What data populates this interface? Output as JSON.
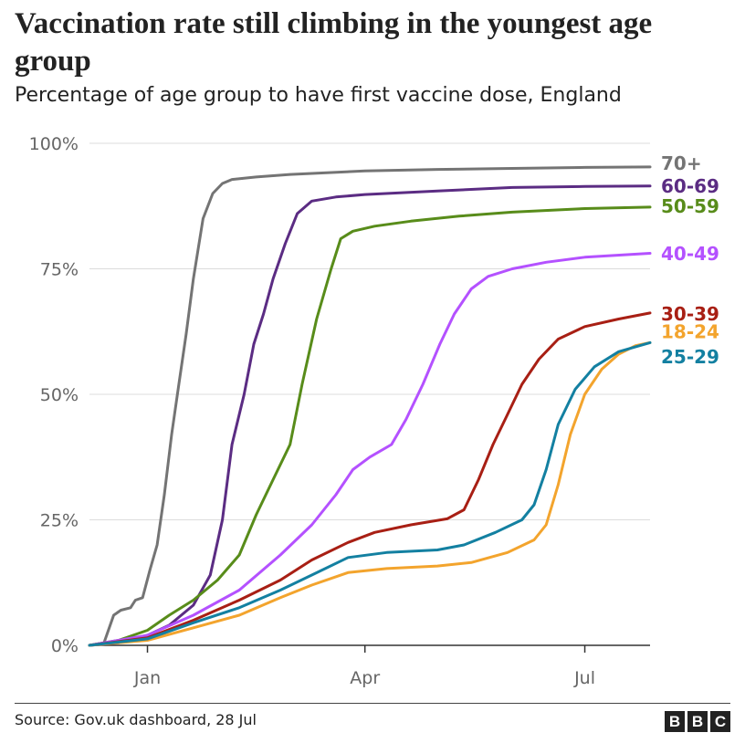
{
  "chart_data": {
    "type": "line",
    "title": "Vaccination rate still climbing in the youngest age group",
    "subtitle": "Percentage of age group to have first vaccine dose, England",
    "y_ticks": [
      "0%",
      "25%",
      "50%",
      "75%",
      "100%"
    ],
    "y_tick_values": [
      0,
      25,
      50,
      75,
      100
    ],
    "x_ticks": [
      "Jan",
      "Apr",
      "Jul"
    ],
    "x_tick_dates": [
      "2021-01-01",
      "2021-04-01",
      "2021-07-01"
    ],
    "x_range": [
      "2020-12-08",
      "2021-07-28"
    ],
    "ylim": [
      0,
      100
    ],
    "grid": true,
    "legend_placement": "right-end-of-lines",
    "series": [
      {
        "name": "70+",
        "color": "#747474",
        "label_value": 96,
        "points": [
          [
            "2020-12-08",
            0
          ],
          [
            "2020-12-14",
            0.5
          ],
          [
            "2020-12-18",
            6
          ],
          [
            "2020-12-21",
            7
          ],
          [
            "2020-12-25",
            7.5
          ],
          [
            "2020-12-27",
            9
          ],
          [
            "2020-12-30",
            9.5
          ],
          [
            "2021-01-02",
            15
          ],
          [
            "2021-01-05",
            20
          ],
          [
            "2021-01-08",
            30
          ],
          [
            "2021-01-11",
            42
          ],
          [
            "2021-01-14",
            52
          ],
          [
            "2021-01-17",
            62
          ],
          [
            "2021-01-20",
            73
          ],
          [
            "2021-01-24",
            85
          ],
          [
            "2021-01-28",
            90
          ],
          [
            "2021-02-01",
            92
          ],
          [
            "2021-02-05",
            92.8
          ],
          [
            "2021-02-15",
            93.3
          ],
          [
            "2021-03-01",
            93.8
          ],
          [
            "2021-04-01",
            94.5
          ],
          [
            "2021-05-01",
            94.8
          ],
          [
            "2021-06-01",
            95
          ],
          [
            "2021-07-01",
            95.2
          ],
          [
            "2021-07-28",
            95.3
          ]
        ]
      },
      {
        "name": "60-69",
        "color": "#5b2c83",
        "label_value": 91.5,
        "points": [
          [
            "2020-12-08",
            0
          ],
          [
            "2020-12-20",
            0.5
          ],
          [
            "2021-01-01",
            2
          ],
          [
            "2021-01-10",
            4
          ],
          [
            "2021-01-20",
            8
          ],
          [
            "2021-01-27",
            14
          ],
          [
            "2021-02-01",
            25
          ],
          [
            "2021-02-05",
            40
          ],
          [
            "2021-02-10",
            50
          ],
          [
            "2021-02-14",
            60
          ],
          [
            "2021-02-18",
            66
          ],
          [
            "2021-02-22",
            73
          ],
          [
            "2021-02-27",
            80
          ],
          [
            "2021-03-04",
            86
          ],
          [
            "2021-03-10",
            88.5
          ],
          [
            "2021-03-20",
            89.3
          ],
          [
            "2021-04-01",
            89.8
          ],
          [
            "2021-05-01",
            90.5
          ],
          [
            "2021-06-01",
            91.2
          ],
          [
            "2021-07-01",
            91.4
          ],
          [
            "2021-07-28",
            91.5
          ]
        ]
      },
      {
        "name": "50-59",
        "color": "#588c1a",
        "label_value": 87.5,
        "points": [
          [
            "2020-12-08",
            0
          ],
          [
            "2020-12-20",
            1
          ],
          [
            "2021-01-01",
            3
          ],
          [
            "2021-01-10",
            6
          ],
          [
            "2021-01-20",
            9
          ],
          [
            "2021-01-30",
            13
          ],
          [
            "2021-02-08",
            18
          ],
          [
            "2021-02-15",
            26
          ],
          [
            "2021-02-22",
            33
          ],
          [
            "2021-03-01",
            40
          ],
          [
            "2021-03-06",
            52
          ],
          [
            "2021-03-12",
            65
          ],
          [
            "2021-03-18",
            75
          ],
          [
            "2021-03-22",
            81
          ],
          [
            "2021-03-27",
            82.5
          ],
          [
            "2021-04-05",
            83.5
          ],
          [
            "2021-04-20",
            84.5
          ],
          [
            "2021-05-10",
            85.5
          ],
          [
            "2021-06-01",
            86.3
          ],
          [
            "2021-07-01",
            87
          ],
          [
            "2021-07-28",
            87.3
          ]
        ]
      },
      {
        "name": "40-49",
        "color": "#b451ff",
        "label_value": 78,
        "points": [
          [
            "2020-12-08",
            0
          ],
          [
            "2021-01-01",
            2
          ],
          [
            "2021-01-20",
            6
          ],
          [
            "2021-02-08",
            11
          ],
          [
            "2021-02-25",
            18
          ],
          [
            "2021-03-10",
            24
          ],
          [
            "2021-03-20",
            30
          ],
          [
            "2021-03-27",
            35
          ],
          [
            "2021-04-03",
            37.5
          ],
          [
            "2021-04-12",
            40
          ],
          [
            "2021-04-18",
            45
          ],
          [
            "2021-04-25",
            52
          ],
          [
            "2021-05-02",
            60
          ],
          [
            "2021-05-08",
            66
          ],
          [
            "2021-05-15",
            71
          ],
          [
            "2021-05-22",
            73.5
          ],
          [
            "2021-06-01",
            75
          ],
          [
            "2021-06-15",
            76.3
          ],
          [
            "2021-07-01",
            77.3
          ],
          [
            "2021-07-28",
            78.1
          ]
        ]
      },
      {
        "name": "30-39",
        "color": "#a81f14",
        "label_value": 66,
        "points": [
          [
            "2020-12-08",
            0
          ],
          [
            "2021-01-01",
            1.5
          ],
          [
            "2021-01-20",
            5
          ],
          [
            "2021-02-08",
            9
          ],
          [
            "2021-02-25",
            13
          ],
          [
            "2021-03-10",
            17
          ],
          [
            "2021-03-25",
            20.5
          ],
          [
            "2021-04-05",
            22.5
          ],
          [
            "2021-04-20",
            24
          ],
          [
            "2021-05-05",
            25.2
          ],
          [
            "2021-05-12",
            27
          ],
          [
            "2021-05-18",
            33
          ],
          [
            "2021-05-24",
            40
          ],
          [
            "2021-05-30",
            46
          ],
          [
            "2021-06-05",
            52
          ],
          [
            "2021-06-12",
            57
          ],
          [
            "2021-06-20",
            61
          ],
          [
            "2021-07-01",
            63.5
          ],
          [
            "2021-07-15",
            65
          ],
          [
            "2021-07-28",
            66.2
          ]
        ]
      },
      {
        "name": "18-24",
        "color": "#f3a42d",
        "label_value": 62.5,
        "points": [
          [
            "2020-12-08",
            0
          ],
          [
            "2021-01-01",
            1
          ],
          [
            "2021-01-20",
            3.5
          ],
          [
            "2021-02-08",
            6
          ],
          [
            "2021-02-25",
            9.5
          ],
          [
            "2021-03-10",
            12
          ],
          [
            "2021-03-25",
            14.5
          ],
          [
            "2021-04-10",
            15.3
          ],
          [
            "2021-05-01",
            15.8
          ],
          [
            "2021-05-15",
            16.5
          ],
          [
            "2021-05-30",
            18.5
          ],
          [
            "2021-06-10",
            21
          ],
          [
            "2021-06-15",
            24
          ],
          [
            "2021-06-20",
            32
          ],
          [
            "2021-06-25",
            42
          ],
          [
            "2021-07-01",
            50
          ],
          [
            "2021-07-08",
            55
          ],
          [
            "2021-07-15",
            58
          ],
          [
            "2021-07-22",
            59.7
          ],
          [
            "2021-07-28",
            60.3
          ]
        ]
      },
      {
        "name": "25-29",
        "color": "#1380a1",
        "label_value": 57.5,
        "points": [
          [
            "2020-12-08",
            0
          ],
          [
            "2021-01-01",
            1.3
          ],
          [
            "2021-01-20",
            4.5
          ],
          [
            "2021-02-08",
            7.5
          ],
          [
            "2021-02-25",
            11
          ],
          [
            "2021-03-10",
            14
          ],
          [
            "2021-03-25",
            17.5
          ],
          [
            "2021-04-10",
            18.5
          ],
          [
            "2021-05-01",
            19
          ],
          [
            "2021-05-12",
            20
          ],
          [
            "2021-05-25",
            22.5
          ],
          [
            "2021-06-05",
            25
          ],
          [
            "2021-06-10",
            28
          ],
          [
            "2021-06-15",
            35
          ],
          [
            "2021-06-20",
            44
          ],
          [
            "2021-06-27",
            51
          ],
          [
            "2021-07-05",
            55.5
          ],
          [
            "2021-07-15",
            58.5
          ],
          [
            "2021-07-28",
            60.3
          ]
        ]
      }
    ]
  },
  "footer": {
    "source": "Source: Gov.uk dashboard, 28 Jul",
    "logo_letters": [
      "B",
      "B",
      "C"
    ]
  }
}
